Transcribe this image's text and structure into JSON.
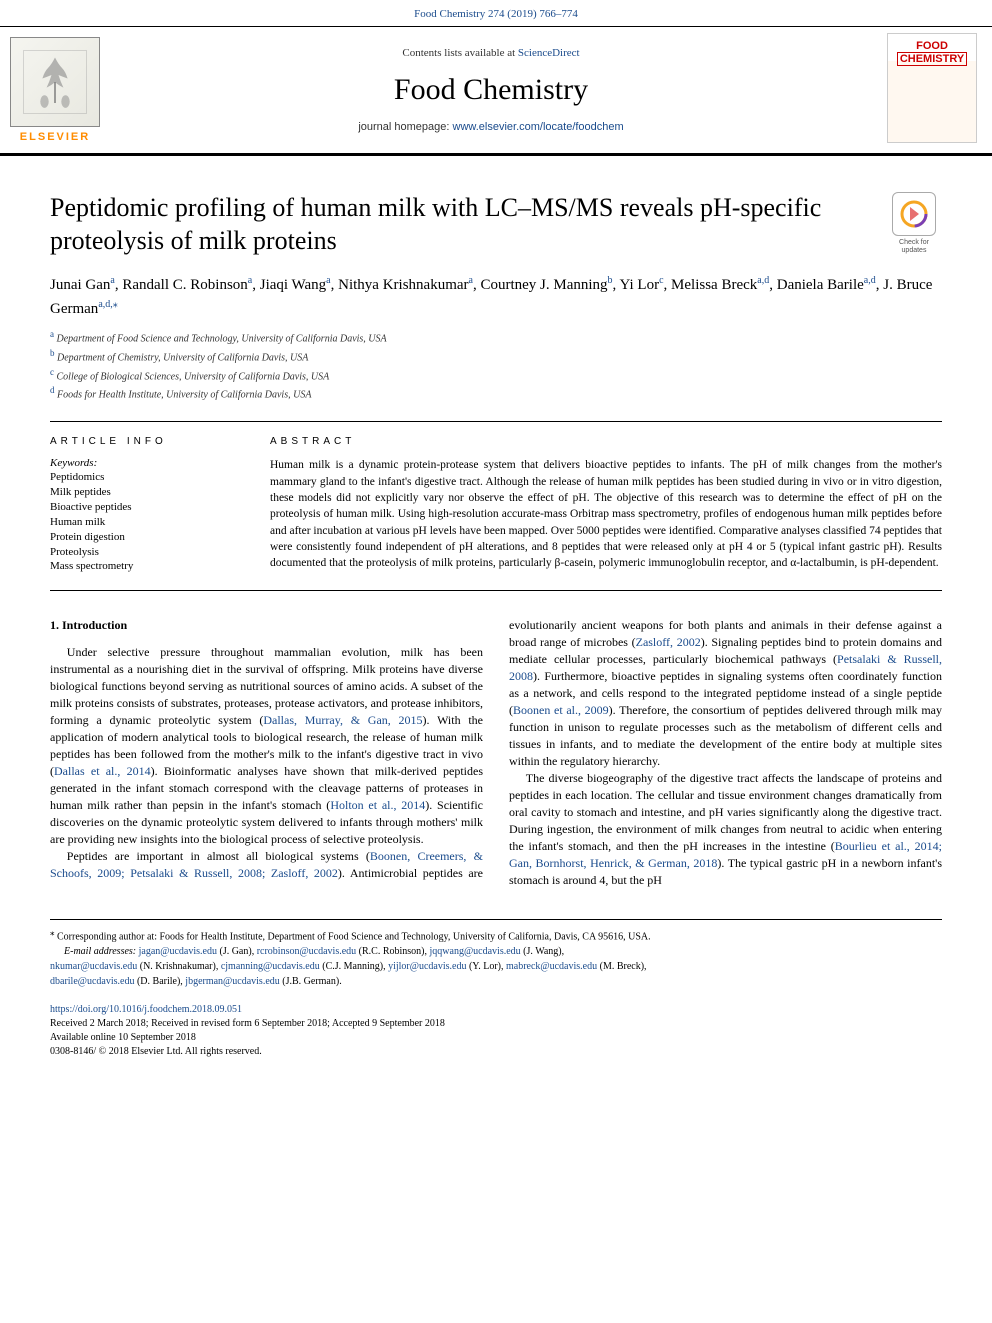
{
  "header": {
    "citation": "Food Chemistry 274 (2019) 766–774",
    "contents_prefix": "Contents lists available at ",
    "contents_link": "ScienceDirect",
    "journal_title": "Food Chemistry",
    "homepage_prefix": "journal homepage: ",
    "homepage_url": "www.elsevier.com/locate/foodchem",
    "publisher_name": "ELSEVIER",
    "cover_line1": "FOOD",
    "cover_line2": "CHEMISTRY"
  },
  "article": {
    "title": "Peptidomic profiling of human milk with LC–MS/MS reveals pH-specific proteolysis of milk proteins",
    "check_updates": "Check for updates",
    "authors": [
      {
        "name": "Junai Gan",
        "aff": "a"
      },
      {
        "name": "Randall C. Robinson",
        "aff": "a"
      },
      {
        "name": "Jiaqi Wang",
        "aff": "a"
      },
      {
        "name": "Nithya Krishnakumar",
        "aff": "a"
      },
      {
        "name": "Courtney J. Manning",
        "aff": "b"
      },
      {
        "name": "Yi Lor",
        "aff": "c"
      },
      {
        "name": "Melissa Breck",
        "aff": "a,d"
      },
      {
        "name": "Daniela Barile",
        "aff": "a,d"
      },
      {
        "name": "J. Bruce German",
        "aff": "a,d,",
        "corr": "⁎"
      }
    ],
    "affiliations": [
      {
        "label": "a",
        "text": "Department of Food Science and Technology, University of California Davis, USA"
      },
      {
        "label": "b",
        "text": "Department of Chemistry, University of California Davis, USA"
      },
      {
        "label": "c",
        "text": "College of Biological Sciences, University of California Davis, USA"
      },
      {
        "label": "d",
        "text": "Foods for Health Institute, University of California Davis, USA"
      }
    ]
  },
  "info": {
    "heading": "ARTICLE INFO",
    "keywords_label": "Keywords:",
    "keywords": [
      "Peptidomics",
      "Milk peptides",
      "Bioactive peptides",
      "Human milk",
      "Protein digestion",
      "Proteolysis",
      "Mass spectrometry"
    ]
  },
  "abstract": {
    "heading": "ABSTRACT",
    "text": "Human milk is a dynamic protein-protease system that delivers bioactive peptides to infants. The pH of milk changes from the mother's mammary gland to the infant's digestive tract. Although the release of human milk peptides has been studied during in vivo or in vitro digestion, these models did not explicitly vary nor observe the effect of pH. The objective of this research was to determine the effect of pH on the proteolysis of human milk. Using high-resolution accurate-mass Orbitrap mass spectrometry, profiles of endogenous human milk peptides before and after incubation at various pH levels have been mapped. Over 5000 peptides were identified. Comparative analyses classified 74 peptides that were consistently found independent of pH alterations, and 8 peptides that were released only at pH 4 or 5 (typical infant gastric pH). Results documented that the proteolysis of milk proteins, particularly β-casein, polymeric immunoglobulin receptor, and α-lactalbumin, is pH-dependent."
  },
  "body": {
    "section1_heading": "1. Introduction",
    "p1": "Under selective pressure throughout mammalian evolution, milk has been instrumental as a nourishing diet in the survival of offspring. Milk proteins have diverse biological functions beyond serving as nutritional sources of amino acids. A subset of the milk proteins consists of substrates, proteases, protease activators, and protease inhibitors, forming a dynamic proteolytic system (",
    "p1_cite1": "Dallas, Murray, & Gan, 2015",
    "p1_b": "). With the application of modern analytical tools to biological research, the release of human milk peptides has been followed from the mother's milk to the infant's digestive tract in vivo (",
    "p1_cite2": "Dallas et al., 2014",
    "p1_c": "). Bioinformatic analyses have shown that milk-derived peptides generated in the infant stomach correspond with the cleavage patterns of proteases in human milk rather than pepsin in the infant's stomach (",
    "p1_cite3": "Holton et al., 2014",
    "p1_d": "). Scientific discoveries on the dynamic proteolytic system delivered to infants through mothers' milk are providing new insights into the biological process of selective proteolysis.",
    "p2_a": "Peptides are important in almost all biological systems (",
    "p2_cite1": "Boonen, Creemers, & Schoofs, 2009; Petsalaki & Russell, 2008; Zasloff, 2002",
    "p2_b": "). Antimicrobial peptides are evolutionarily ancient weapons for both plants and animals in their defense against a broad range of microbes (",
    "p2_cite2": "Zasloff, 2002",
    "p2_c": "). Signaling peptides bind to protein domains and mediate cellular processes, particularly biochemical pathways (",
    "p2_cite3": "Petsalaki & Russell, 2008",
    "p2_d": "). Furthermore, bioactive peptides in signaling systems often coordinately function as a network, and cells respond to the integrated peptidome instead of a single peptide (",
    "p2_cite4": "Boonen et al., 2009",
    "p2_e": "). Therefore, the consortium of peptides delivered through milk may function in unison to regulate processes such as the metabolism of different cells and tissues in infants, and to mediate the development of the entire body at multiple sites within the regulatory hierarchy.",
    "p3_a": "The diverse biogeography of the digestive tract affects the landscape of proteins and peptides in each location. The cellular and tissue environment changes dramatically from oral cavity to stomach and intestine, and pH varies significantly along the digestive tract. During ingestion, the environment of milk changes from neutral to acidic when entering the infant's stomach, and then the pH increases in the intestine (",
    "p3_cite1": "Bourlieu et al., 2014; Gan, Bornhorst, Henrick, & German, 2018",
    "p3_b": "). The typical gastric pH in a newborn infant's stomach is around 4, but the pH"
  },
  "footer": {
    "corr_symbol": "⁎",
    "corr_text": " Corresponding author at: Foods for Health Institute, Department of Food Science and Technology, University of California, Davis, CA 95616, USA.",
    "email_label": "E-mail addresses: ",
    "emails": [
      {
        "addr": "jagan@ucdavis.edu",
        "who": " (J. Gan), "
      },
      {
        "addr": "rcrobinson@ucdavis.edu",
        "who": " (R.C. Robinson), "
      },
      {
        "addr": "jqqwang@ucdavis.edu",
        "who": " (J. Wang),"
      }
    ],
    "emails2": [
      {
        "addr": "nkumar@ucdavis.edu",
        "who": " (N. Krishnakumar), "
      },
      {
        "addr": "cjmanning@ucdavis.edu",
        "who": " (C.J. Manning), "
      },
      {
        "addr": "yijlor@ucdavis.edu",
        "who": " (Y. Lor), "
      },
      {
        "addr": "mabreck@ucdavis.edu",
        "who": " (M. Breck),"
      }
    ],
    "emails3": [
      {
        "addr": "dbarile@ucdavis.edu",
        "who": " (D. Barile), "
      },
      {
        "addr": "jbgerman@ucdavis.edu",
        "who": " (J.B. German)."
      }
    ],
    "doi": "https://doi.org/10.1016/j.foodchem.2018.09.051",
    "received": "Received 2 March 2018; Received in revised form 6 September 2018; Accepted 9 September 2018",
    "online": "Available online 10 September 2018",
    "copyright": "0308-8146/ © 2018 Elsevier Ltd. All rights reserved."
  },
  "colors": {
    "link": "#1a4b8c",
    "elsevier_orange": "#ff8c00",
    "cover_red": "#c00000",
    "rule": "#000000",
    "text": "#000000"
  }
}
